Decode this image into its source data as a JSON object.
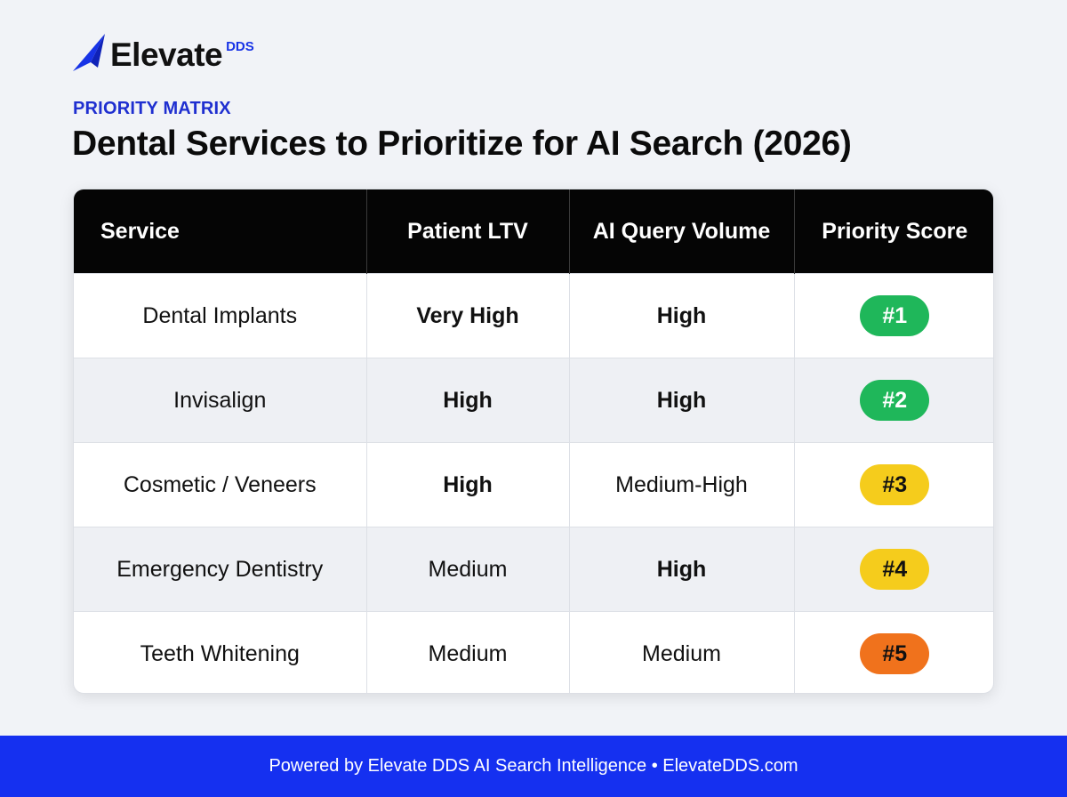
{
  "brand": {
    "name": "Elevate",
    "suffix": "DDS"
  },
  "eyebrow": "PRIORITY MATRIX",
  "title": "Dental Services to Prioritize for AI Search (2026)",
  "table": {
    "headers": [
      "Service",
      "Patient LTV",
      "AI Query Volume",
      "Priority Score"
    ],
    "rows": [
      {
        "service": "Dental Implants",
        "ltv": "Very High",
        "ltv_bold": true,
        "volume": "High",
        "volume_bold": true,
        "score": "#1",
        "score_color": "#1fb75a",
        "score_text_color": "#ffffff"
      },
      {
        "service": "Invisalign",
        "ltv": "High",
        "ltv_bold": true,
        "volume": "High",
        "volume_bold": true,
        "score": "#2",
        "score_color": "#1fb75a",
        "score_text_color": "#ffffff"
      },
      {
        "service": "Cosmetic / Veneers",
        "ltv": "High",
        "ltv_bold": true,
        "volume": "Medium-High",
        "volume_bold": false,
        "score": "#3",
        "score_color": "#f5cc1c",
        "score_text_color": "#111111"
      },
      {
        "service": "Emergency Dentistry",
        "ltv": "Medium",
        "ltv_bold": false,
        "volume": "High",
        "volume_bold": true,
        "score": "#4",
        "score_color": "#f5cc1c",
        "score_text_color": "#111111"
      },
      {
        "service": "Teeth Whitening",
        "ltv": "Medium",
        "ltv_bold": false,
        "volume": "Medium",
        "volume_bold": false,
        "score": "#5",
        "score_color": "#f0721c",
        "score_text_color": "#111111"
      }
    ]
  },
  "footer": "Powered by Elevate DDS AI Search Intelligence • ElevateDDS.com",
  "colors": {
    "accent": "#1530f0",
    "header_bg": "#050505",
    "page_bg": "#f1f3f7"
  }
}
